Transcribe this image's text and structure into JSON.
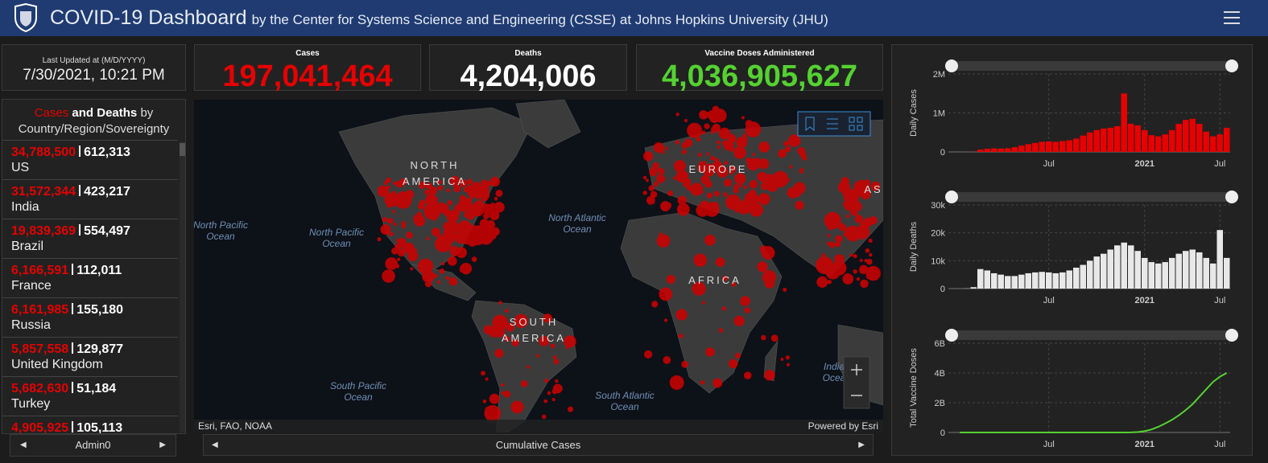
{
  "header": {
    "title": "COVID-19 Dashboard",
    "subtitle": "by the Center for Systems Science and Engineering (CSSE) at Johns Hopkins University (JHU)"
  },
  "last_updated": {
    "label": "Last Updated at (M/D/YYYY)",
    "value": "7/30/2021, 10:21 PM"
  },
  "totals": [
    {
      "label": "Cases",
      "value": "197,041,464",
      "color": "#e60000"
    },
    {
      "label": "Deaths",
      "value": "4,204,006",
      "color": "#ffffff"
    },
    {
      "label": "Vaccine Doses Administered",
      "value": "4,036,905,627",
      "color": "#55d132"
    }
  ],
  "country_list": {
    "title": {
      "cases": "Cases",
      "and": "and",
      "deaths": "Deaths",
      "by": "by",
      "rest": "Country/Region/Sovereignty"
    },
    "rows": [
      {
        "cases": "34,788,500",
        "deaths": "612,313",
        "name": "US"
      },
      {
        "cases": "31,572,344",
        "deaths": "423,217",
        "name": "India"
      },
      {
        "cases": "19,839,369",
        "deaths": "554,497",
        "name": "Brazil"
      },
      {
        "cases": "6,166,591",
        "deaths": "112,011",
        "name": "France"
      },
      {
        "cases": "6,161,985",
        "deaths": "155,180",
        "name": "Russia"
      },
      {
        "cases": "5,857,558",
        "deaths": "129,877",
        "name": "United Kingdom"
      },
      {
        "cases": "5,682,630",
        "deaths": "51,184",
        "name": "Turkey"
      },
      {
        "cases": "4,905,925",
        "deaths": "105,113"
      }
    ],
    "tab": "Admin0"
  },
  "map": {
    "land_labels": [
      [
        "NORTH",
        "AMERICA"
      ],
      [
        "EUROPE"
      ],
      [
        "AS"
      ],
      [
        "AFRICA"
      ],
      [
        "SOUTH",
        "AMERICA"
      ]
    ],
    "ocean_labels": [
      [
        "North Pacific",
        "Ocean"
      ],
      [
        "North Pacific",
        "Ocean"
      ],
      [
        "North Atlantic",
        "Ocean"
      ],
      [
        "South Pacific",
        "Ocean"
      ],
      [
        "South Atlantic",
        "Ocean"
      ],
      [
        "India",
        "Ocea"
      ]
    ],
    "attribution": "Esri, FAO, NOAA",
    "powered": "Powered by Esri",
    "tab": "Cumulative Cases"
  },
  "chart_data": [
    {
      "type": "bar",
      "y_label": "Daily Cases",
      "color": "#e60000",
      "grid": true,
      "categories": [
        null,
        null,
        null,
        null,
        null,
        null,
        null,
        null,
        null,
        null,
        null,
        null,
        null,
        "Jul",
        null,
        null,
        null,
        null,
        null,
        null,
        null,
        null,
        null,
        null,
        null,
        null,
        null,
        "2021",
        null,
        null,
        null,
        null,
        null,
        null,
        null,
        null,
        null,
        null,
        "Jul",
        null
      ],
      "values": [
        0,
        1000,
        3000,
        60000,
        80000,
        90000,
        85000,
        95000,
        120000,
        160000,
        200000,
        230000,
        260000,
        270000,
        260000,
        280000,
        300000,
        340000,
        420000,
        500000,
        560000,
        600000,
        620000,
        660000,
        1500000,
        720000,
        680000,
        560000,
        430000,
        400000,
        450000,
        560000,
        720000,
        820000,
        850000,
        720000,
        520000,
        400000,
        450000,
        620000
      ],
      "ylim": [
        0,
        2000000
      ],
      "yticks": [
        0,
        {
          "value": 1000000,
          "label": "1M"
        },
        {
          "value": 2000000,
          "label": "2M"
        }
      ]
    },
    {
      "type": "bar",
      "y_label": "Daily Deaths",
      "color": "#e8e8e8",
      "grid": true,
      "categories": [
        null,
        null,
        null,
        null,
        null,
        null,
        null,
        null,
        null,
        null,
        null,
        null,
        null,
        "Jul",
        null,
        null,
        null,
        null,
        null,
        null,
        null,
        null,
        null,
        null,
        null,
        null,
        null,
        "2021",
        null,
        null,
        null,
        null,
        null,
        null,
        null,
        null,
        null,
        null,
        "Jul",
        null
      ],
      "values": [
        0,
        50,
        500,
        7000,
        6500,
        5500,
        5000,
        4500,
        4500,
        5000,
        5500,
        5800,
        6000,
        5800,
        5500,
        5800,
        6500,
        7500,
        8500,
        10000,
        11500,
        12500,
        14000,
        15500,
        16500,
        15500,
        13500,
        11000,
        9500,
        9000,
        9500,
        11000,
        12500,
        13500,
        14000,
        13000,
        11000,
        9000,
        21000,
        11000
      ],
      "ylim": [
        0,
        30000
      ],
      "yticks": [
        0,
        {
          "value": 10000,
          "label": "10k"
        },
        {
          "value": 20000,
          "label": "20k"
        },
        {
          "value": 30000,
          "label": "30k"
        }
      ]
    },
    {
      "type": "line",
      "y_label": "Total Vaccine Doses",
      "color": "#55d132",
      "grid": true,
      "categories": [
        null,
        null,
        null,
        null,
        null,
        null,
        null,
        null,
        null,
        null,
        null,
        null,
        null,
        "Jul",
        null,
        null,
        null,
        null,
        null,
        null,
        null,
        null,
        null,
        null,
        null,
        null,
        null,
        "2021",
        null,
        null,
        null,
        null,
        null,
        null,
        null,
        null,
        null,
        null,
        "Jul",
        null
      ],
      "values": [
        0,
        0,
        0,
        0,
        0,
        0,
        0,
        0,
        0,
        0,
        0,
        0,
        0,
        0,
        0,
        0,
        0,
        0,
        0,
        0,
        0,
        0,
        0,
        0,
        0,
        5000000,
        30000000,
        90000000,
        200000000,
        380000000,
        600000000,
        850000000,
        1150000000,
        1500000000,
        1900000000,
        2400000000,
        2900000000,
        3400000000,
        3750000000,
        4000000000
      ],
      "ylim": [
        0,
        6000000000
      ],
      "yticks": [
        0,
        {
          "value": 2000000000,
          "label": "2B"
        },
        {
          "value": 4000000000,
          "label": "4B"
        },
        {
          "value": 6000000000,
          "label": "6B"
        }
      ]
    }
  ]
}
